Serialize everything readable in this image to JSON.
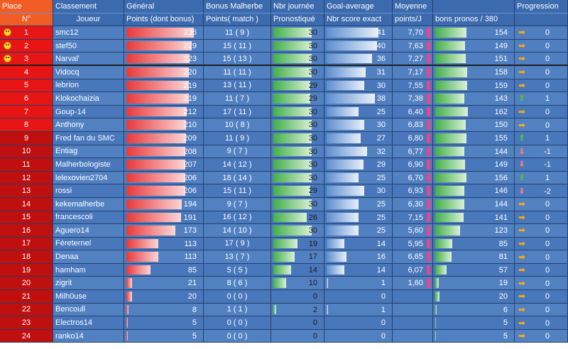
{
  "header": {
    "row1": [
      "Place",
      "Classement",
      "Général",
      "Bonus Malherbe",
      "Nbr journée",
      "Goal-average",
      "Moyenne",
      "",
      "Progression"
    ],
    "row2": [
      "N°",
      "Joueur",
      "Points (dont bonus)",
      "Points( match )",
      "Pronostiqué",
      "Nbr score exact",
      "points/J",
      "bons pronos / 380",
      ""
    ]
  },
  "colors": {
    "rank_bg": "#e81515",
    "header_place": "#f25c25",
    "row_bg": "#4877bb",
    "bar_red": "#e8393b",
    "bar_green": "#42b04a",
    "bar_pink": "#e7458c"
  },
  "rows": [
    {
      "place": "1",
      "player": "smc12",
      "points": 236,
      "bonus": "11 ( 9 )",
      "journees": 30,
      "exact": 41,
      "avg": "7,70",
      "pronos": 154,
      "trend": "right",
      "prog": "0",
      "smile": true
    },
    {
      "place": "2",
      "player": "stef50",
      "points": 229,
      "bonus": "15 ( 11 )",
      "journees": 30,
      "exact": 40,
      "avg": "7,63",
      "pronos": 149,
      "trend": "right",
      "prog": "0",
      "smile": true
    },
    {
      "place": "3",
      "player": "Narval'",
      "points": 223,
      "bonus": "15 ( 13 )",
      "journees": 30,
      "exact": 36,
      "avg": "7,27",
      "pronos": 151,
      "trend": "right",
      "prog": "0",
      "smile": true
    },
    {
      "place": "4",
      "player": "Vidocq",
      "points": 220,
      "bonus": "11 ( 11 )",
      "journees": 30,
      "exact": 31,
      "avg": "7,17",
      "pronos": 158,
      "trend": "right",
      "prog": "0"
    },
    {
      "place": "5",
      "player": "lebrion",
      "points": 219,
      "bonus": "13 ( 11 )",
      "journees": 29,
      "exact": 30,
      "avg": "7,55",
      "pronos": 159,
      "trend": "right",
      "prog": "0"
    },
    {
      "place": "6",
      "player": "Klokochaizia",
      "points": 219,
      "bonus": "11 ( 7 )",
      "journees": 29,
      "exact": 38,
      "avg": "7,38",
      "pronos": 143,
      "trend": "up",
      "prog": "1"
    },
    {
      "place": "7",
      "player": "Goup-14",
      "points": 212,
      "bonus": "17 ( 11 )",
      "journees": 30,
      "exact": 25,
      "avg": "6,40",
      "pronos": 162,
      "trend": "right",
      "prog": "0"
    },
    {
      "place": "8",
      "player": "Anthony",
      "points": 210,
      "bonus": "10 ( 8 )",
      "journees": 30,
      "exact": 30,
      "avg": "6,83",
      "pronos": 150,
      "trend": "right",
      "prog": "0"
    },
    {
      "place": "9",
      "player": "Fred fan du SMC",
      "points": 209,
      "bonus": "11 ( 9 )",
      "journees": 30,
      "exact": 27,
      "avg": "6,80",
      "pronos": 155,
      "trend": "up",
      "prog": "1"
    },
    {
      "place": "10",
      "player": "Entiag",
      "points": 208,
      "bonus": "9 ( 7 )",
      "journees": 30,
      "exact": 32,
      "avg": "6,77",
      "pronos": 144,
      "trend": "down",
      "prog": "-1"
    },
    {
      "place": "11",
      "player": "Malherbologiste",
      "points": 207,
      "bonus": "14 ( 12 )",
      "journees": 30,
      "exact": 29,
      "avg": "6,90",
      "pronos": 149,
      "trend": "down",
      "prog": "-1"
    },
    {
      "place": "12",
      "player": "lelexovien2704",
      "points": 206,
      "bonus": "18 ( 14 )",
      "journees": 30,
      "exact": 25,
      "avg": "6,70",
      "pronos": 156,
      "trend": "up",
      "prog": "1"
    },
    {
      "place": "13",
      "player": "rossi",
      "points": 206,
      "bonus": "15 ( 11 )",
      "journees": 29,
      "exact": 30,
      "avg": "6,93",
      "pronos": 146,
      "trend": "down",
      "prog": "-2"
    },
    {
      "place": "14",
      "player": "kekemalherbe",
      "points": 194,
      "bonus": "9 ( 7 )",
      "journees": 30,
      "exact": 25,
      "avg": "6,30",
      "pronos": 144,
      "trend": "right",
      "prog": "0"
    },
    {
      "place": "15",
      "player": "francescoli",
      "points": 191,
      "bonus": "16 ( 12 )",
      "journees": 26,
      "exact": 25,
      "avg": "7,15",
      "pronos": 141,
      "trend": "right",
      "prog": "0"
    },
    {
      "place": "16",
      "player": "Aguero14",
      "points": 173,
      "bonus": "14 ( 10 )",
      "journees": 30,
      "exact": 25,
      "avg": "5,60",
      "pronos": 123,
      "trend": "right",
      "prog": "0"
    },
    {
      "place": "17",
      "player": "Féreternel",
      "points": 113,
      "bonus": "17 ( 9 )",
      "journees": 19,
      "exact": 14,
      "avg": "5,95",
      "pronos": 85,
      "trend": "right",
      "prog": "0"
    },
    {
      "place": "18",
      "player": "Denaa",
      "points": 113,
      "bonus": "13 ( 7 )",
      "journees": 17,
      "exact": 16,
      "avg": "6,65",
      "pronos": 81,
      "trend": "right",
      "prog": "0"
    },
    {
      "place": "19",
      "player": "hamham",
      "points": 85,
      "bonus": "5 ( 5 )",
      "journees": 14,
      "exact": 14,
      "avg": "6,07",
      "pronos": 57,
      "trend": "right",
      "prog": "0"
    },
    {
      "place": "20",
      "player": "zigrit",
      "points": 21,
      "bonus": "8 ( 6 )",
      "journees": 10,
      "exact": 1,
      "avg": "1,60",
      "pronos": 19,
      "trend": "right",
      "prog": "0"
    },
    {
      "place": "21",
      "player": "Milh0use",
      "points": 20,
      "bonus": "0 ( 0 )",
      "journees": 0,
      "exact": 0,
      "avg": "",
      "pronos": 20,
      "trend": "right",
      "prog": "0"
    },
    {
      "place": "22",
      "player": "Bencoull",
      "points": 8,
      "bonus": "1 ( 1 )",
      "journees": 2,
      "exact": 1,
      "avg": "",
      "pronos": 6,
      "trend": "right",
      "prog": "0"
    },
    {
      "place": "23",
      "player": "Electros14",
      "points": 5,
      "bonus": "0 ( 0 )",
      "journees": 0,
      "exact": 0,
      "avg": "",
      "pronos": 5,
      "trend": "right",
      "prog": "0"
    },
    {
      "place": "24",
      "player": "ranko14",
      "points": 5,
      "bonus": "0 ( 0 )",
      "journees": 0,
      "exact": 0,
      "avg": "",
      "pronos": 5,
      "trend": "right",
      "prog": "0"
    }
  ]
}
